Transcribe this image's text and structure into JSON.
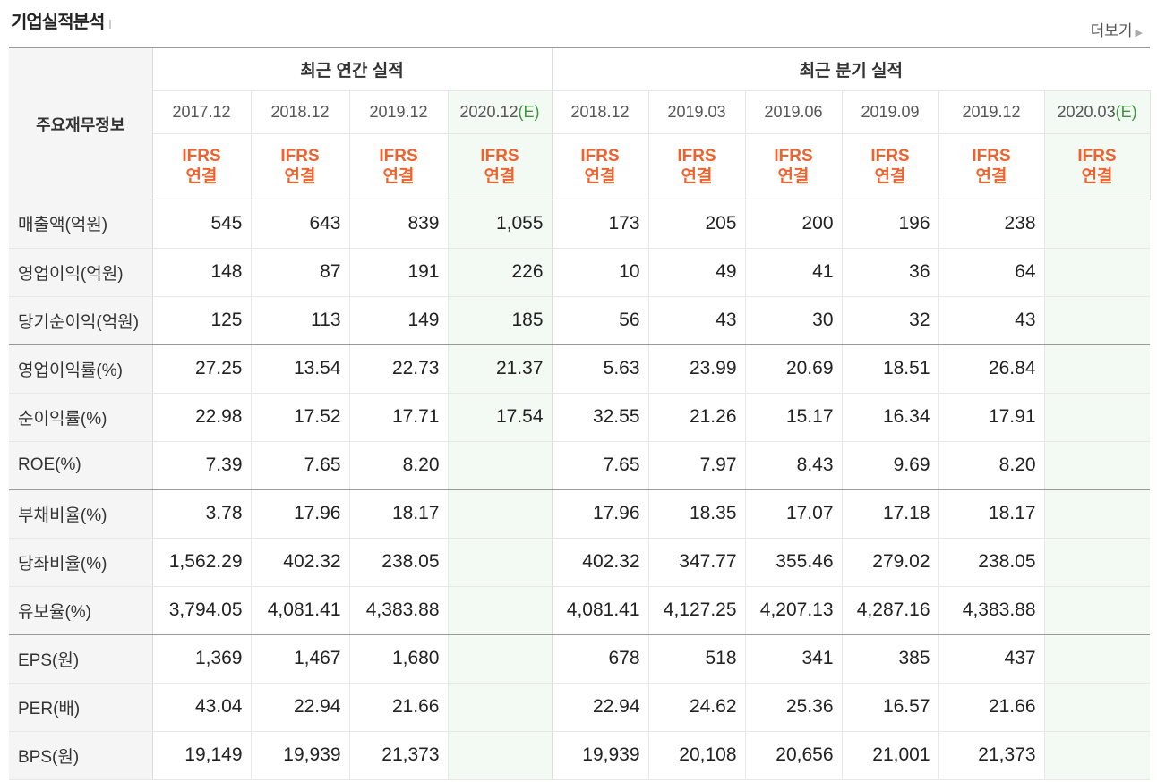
{
  "section_title": "기업실적분석",
  "more_label": "더보기",
  "header": {
    "row_label": "주요재무정보",
    "annual_group": "최근 연간 실적",
    "quarterly_group": "최근 분기 실적",
    "periods": [
      "2017.12",
      "2018.12",
      "2019.12",
      "2020.12",
      "2018.12",
      "2019.03",
      "2019.06",
      "2019.09",
      "2019.12",
      "2020.03"
    ],
    "estimate_marker": "(E)",
    "ifrs_line1": "IFRS",
    "ifrs_line2": "연결"
  },
  "rows": [
    {
      "label": "매출액(억원)",
      "values": [
        "545",
        "643",
        "839",
        "1,055",
        "173",
        "205",
        "200",
        "196",
        "238",
        ""
      ]
    },
    {
      "label": "영업이익(억원)",
      "values": [
        "148",
        "87",
        "191",
        "226",
        "10",
        "49",
        "41",
        "36",
        "64",
        ""
      ]
    },
    {
      "label": "당기순이익(억원)",
      "values": [
        "125",
        "113",
        "149",
        "185",
        "56",
        "43",
        "30",
        "32",
        "43",
        ""
      ]
    },
    {
      "label": "영업이익률(%)",
      "values": [
        "27.25",
        "13.54",
        "22.73",
        "21.37",
        "5.63",
        "23.99",
        "20.69",
        "18.51",
        "26.84",
        ""
      ]
    },
    {
      "label": "순이익률(%)",
      "values": [
        "22.98",
        "17.52",
        "17.71",
        "17.54",
        "32.55",
        "21.26",
        "15.17",
        "16.34",
        "17.91",
        ""
      ]
    },
    {
      "label": "ROE(%)",
      "values": [
        "7.39",
        "7.65",
        "8.20",
        "",
        "7.65",
        "7.97",
        "8.43",
        "9.69",
        "8.20",
        ""
      ]
    },
    {
      "label": "부채비율(%)",
      "values": [
        "3.78",
        "17.96",
        "18.17",
        "",
        "17.96",
        "18.35",
        "17.07",
        "17.18",
        "18.17",
        ""
      ]
    },
    {
      "label": "당좌비율(%)",
      "values": [
        "1,562.29",
        "402.32",
        "238.05",
        "",
        "402.32",
        "347.77",
        "355.46",
        "279.02",
        "238.05",
        ""
      ]
    },
    {
      "label": "유보율(%)",
      "values": [
        "3,794.05",
        "4,081.41",
        "4,383.88",
        "",
        "4,081.41",
        "4,127.25",
        "4,207.13",
        "4,287.16",
        "4,383.88",
        ""
      ]
    },
    {
      "label": "EPS(원)",
      "values": [
        "1,369",
        "1,467",
        "1,680",
        "",
        "678",
        "518",
        "341",
        "385",
        "437",
        ""
      ]
    },
    {
      "label": "PER(배)",
      "values": [
        "43.04",
        "22.94",
        "21.66",
        "",
        "22.94",
        "24.62",
        "25.36",
        "16.57",
        "21.66",
        ""
      ]
    },
    {
      "label": "BPS(원)",
      "values": [
        "19,149",
        "19,939",
        "21,373",
        "",
        "19,939",
        "20,108",
        "20,656",
        "21,001",
        "21,373",
        ""
      ]
    }
  ]
}
